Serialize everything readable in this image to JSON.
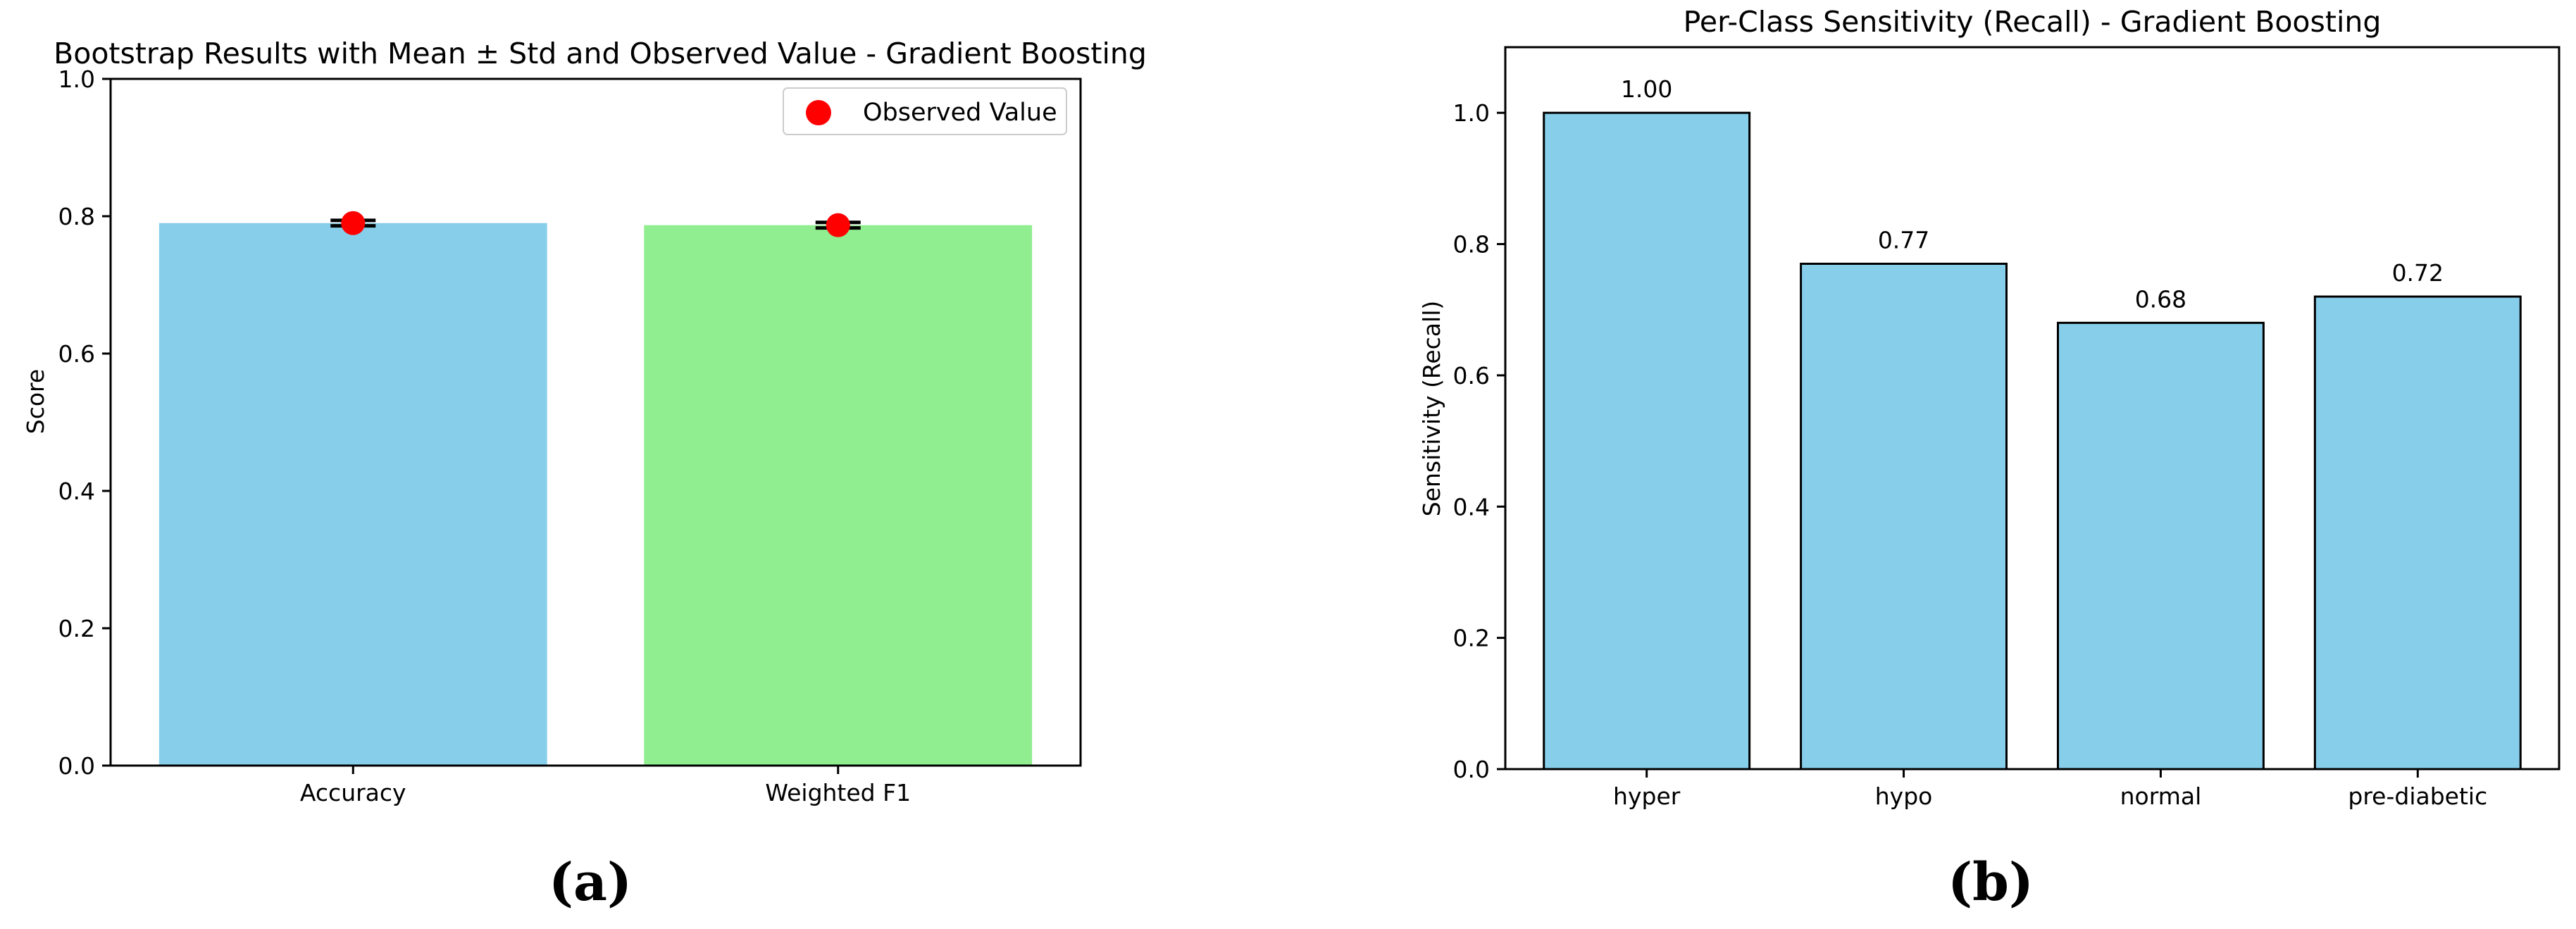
{
  "chart_data": [
    {
      "type": "bar",
      "panel_label": "(a)",
      "title": "Bootstrap Results with Mean ± Std and Observed Value - Gradient Boosting",
      "xlabel": "",
      "ylabel": "Score",
      "ylim": [
        0,
        1.0
      ],
      "yticks": [
        "0.0",
        "0.2",
        "0.4",
        "0.6",
        "0.8",
        "1.0"
      ],
      "grid": false,
      "legend": {
        "placement": "top-right",
        "entries": [
          "Observed Value"
        ]
      },
      "categories": [
        "Accuracy",
        "Weighted F1"
      ],
      "values": [
        0.79,
        0.787
      ],
      "std": [
        0.004,
        0.004
      ],
      "observed": [
        0.79,
        0.787
      ],
      "bar_colors": [
        "#87CEEB",
        "#90EE90"
      ],
      "observed_color": "#FF0000"
    },
    {
      "type": "bar",
      "panel_label": "(b)",
      "title": "Per-Class Sensitivity (Recall) - Gradient Boosting",
      "xlabel": "",
      "ylabel": "Sensitivity (Recall)",
      "ylim": [
        0,
        1.1
      ],
      "yticks": [
        "0.0",
        "0.2",
        "0.4",
        "0.6",
        "0.8",
        "1.0"
      ],
      "grid": false,
      "categories": [
        "hyper",
        "hypo",
        "normal",
        "pre-diabetic"
      ],
      "values": [
        1.0,
        0.77,
        0.68,
        0.72
      ],
      "data_labels": [
        "1.00",
        "0.77",
        "0.68",
        "0.72"
      ],
      "bar_color": "#87CEEB",
      "edge_color": "#000000"
    }
  ]
}
